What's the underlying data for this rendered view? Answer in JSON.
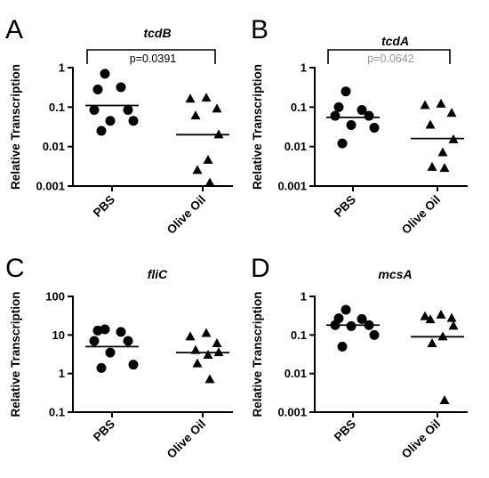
{
  "figure": {
    "ylabel": "Relative Transcription",
    "categories": [
      "PBS",
      "Olive Oil"
    ]
  },
  "chart_data": [
    {
      "panel": "A",
      "type": "scatter",
      "title": "tcdB",
      "ylabel": "Relative Transcription",
      "yscale": "log",
      "ylim": [
        0.001,
        1
      ],
      "yticks": [
        "0.001",
        "0.01",
        "0.1",
        "1"
      ],
      "categories": [
        "PBS",
        "Olive Oil"
      ],
      "series": [
        {
          "category": "PBS",
          "marker": "circle",
          "values": [
            0.7,
            0.28,
            0.32,
            0.085,
            0.085,
            0.045,
            0.045,
            0.025
          ],
          "mean": 0.11
        },
        {
          "category": "Olive Oil",
          "marker": "triangle",
          "values": [
            0.17,
            0.16,
            0.09,
            0.06,
            0.02,
            0.0045,
            0.0025,
            0.0012
          ],
          "mean": 0.02
        }
      ],
      "annotation": {
        "text": "p=0.0391",
        "color": "#000000"
      }
    },
    {
      "panel": "B",
      "type": "scatter",
      "title": "tcdA",
      "ylabel": "Relative Transcription",
      "yscale": "log",
      "ylim": [
        0.001,
        1
      ],
      "yticks": [
        "0.001",
        "0.01",
        "0.1",
        "1"
      ],
      "categories": [
        "PBS",
        "Olive Oil"
      ],
      "series": [
        {
          "category": "PBS",
          "marker": "circle",
          "values": [
            0.25,
            0.1,
            0.085,
            0.06,
            0.06,
            0.035,
            0.03,
            0.012
          ],
          "mean": 0.055
        },
        {
          "category": "Olive Oil",
          "marker": "triangle",
          "values": [
            0.12,
            0.11,
            0.07,
            0.035,
            0.015,
            0.007,
            0.003,
            0.0028
          ],
          "mean": 0.016
        }
      ],
      "annotation": {
        "text": "p=0.0642",
        "color": "#999999"
      }
    },
    {
      "panel": "C",
      "type": "scatter",
      "title": "fliC",
      "ylabel": "Relative Transcription",
      "yscale": "log",
      "ylim": [
        0.1,
        100
      ],
      "yticks": [
        "0.1",
        "1",
        "10",
        "100"
      ],
      "categories": [
        "PBS",
        "Olive Oil"
      ],
      "series": [
        {
          "category": "PBS",
          "marker": "circle",
          "values": [
            14,
            13,
            12,
            7,
            7,
            3.5,
            1.7,
            1.4
          ],
          "mean": 5
        },
        {
          "category": "Olive Oil",
          "marker": "triangle",
          "values": [
            11,
            9,
            6,
            4,
            3.5,
            3,
            1.8,
            0.7
          ],
          "mean": 3.5
        }
      ]
    },
    {
      "panel": "D",
      "type": "scatter",
      "title": "mcsA",
      "ylabel": "Relative Transcription",
      "yscale": "log",
      "ylim": [
        0.001,
        1
      ],
      "yticks": [
        "0.001",
        "0.01",
        "0.1",
        "1"
      ],
      "categories": [
        "PBS",
        "Olive Oil"
      ],
      "series": [
        {
          "category": "PBS",
          "marker": "circle",
          "values": [
            0.45,
            0.27,
            0.26,
            0.18,
            0.18,
            0.17,
            0.1,
            0.05
          ],
          "mean": 0.18
        },
        {
          "category": "Olive Oil",
          "marker": "triangle",
          "values": [
            0.33,
            0.3,
            0.27,
            0.25,
            0.17,
            0.09,
            0.06,
            0.002
          ],
          "mean": 0.09
        }
      ]
    }
  ]
}
